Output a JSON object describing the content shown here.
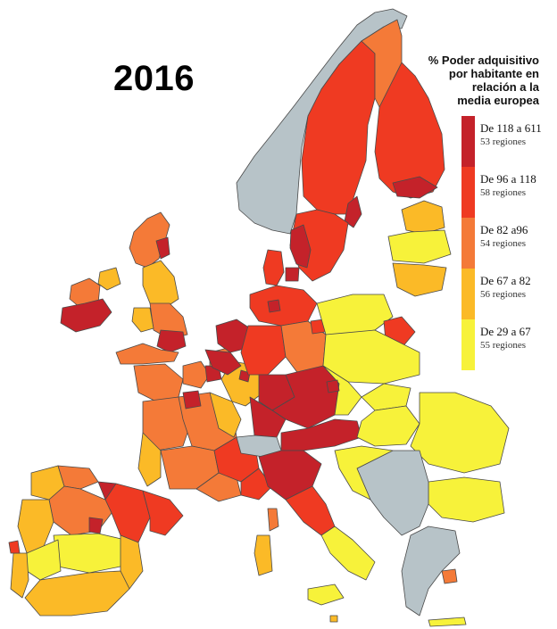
{
  "title": "2016",
  "legend": {
    "title_lines": [
      "% Poder adquisitivo",
      "por habitante en",
      "relación a la",
      "media europea"
    ],
    "items": [
      {
        "range": "De 118 a 611",
        "count": "53 regiones",
        "color": "#c4222a"
      },
      {
        "range": "De 96 a 118",
        "count": "58 regiones",
        "color": "#ef3a22"
      },
      {
        "range": "De 82 a96",
        "count": "54 regiones",
        "color": "#f47a38"
      },
      {
        "range": "De 67 a 82",
        "count": "56 regiones",
        "color": "#fbba27"
      },
      {
        "range": "De 29 a 67",
        "count": "55 regiones",
        "color": "#f7f23a"
      }
    ]
  },
  "colors": {
    "no_data": "#b7c3c8",
    "border": "#4a4a4a",
    "background": "#ffffff"
  }
}
